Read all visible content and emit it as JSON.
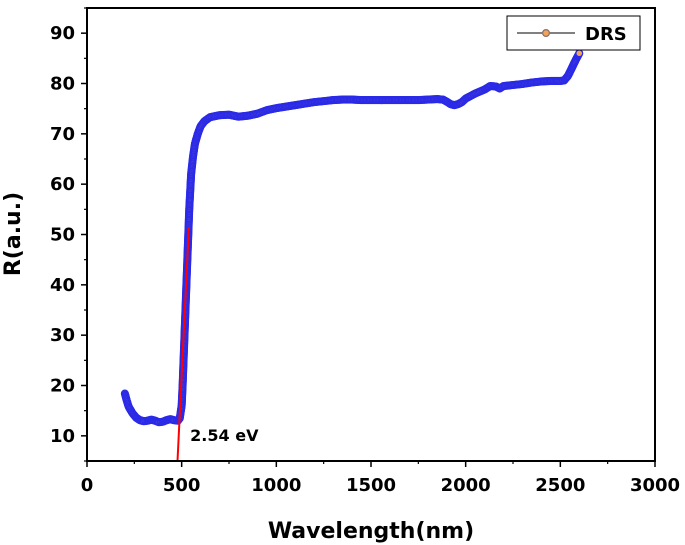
{
  "chart_data": {
    "type": "scatter",
    "xlabel": "Wavelength(nm)",
    "ylabel": "R(a.u.)",
    "xlim": [
      0,
      3000
    ],
    "ylim": [
      5,
      95
    ],
    "xticks": [
      0,
      500,
      1000,
      1500,
      2000,
      2500,
      3000
    ],
    "yticks": [
      10,
      20,
      30,
      40,
      50,
      60,
      70,
      80,
      90
    ],
    "grid": false,
    "legend": {
      "placement": "top-right",
      "entries": [
        "DRS"
      ]
    },
    "colors": {
      "points": "#2a2ae8",
      "marker_fill": "#f2a35a",
      "marker_edge": "#8a6f6a",
      "fit_line": "#ff0000"
    },
    "series": [
      {
        "name": "DRS",
        "points": [
          [
            200,
            18.4
          ],
          [
            210,
            17.0
          ],
          [
            220,
            15.8
          ],
          [
            240,
            14.5
          ],
          [
            260,
            13.6
          ],
          [
            280,
            13.1
          ],
          [
            300,
            12.9
          ],
          [
            320,
            13.0
          ],
          [
            340,
            13.2
          ],
          [
            360,
            13.0
          ],
          [
            380,
            12.7
          ],
          [
            400,
            12.8
          ],
          [
            420,
            13.1
          ],
          [
            440,
            13.3
          ],
          [
            460,
            13.1
          ],
          [
            480,
            13.0
          ],
          [
            490,
            13.5
          ],
          [
            500,
            16.0
          ],
          [
            505,
            20.0
          ],
          [
            510,
            25.0
          ],
          [
            515,
            30.0
          ],
          [
            520,
            35.0
          ],
          [
            525,
            40.0
          ],
          [
            530,
            45.0
          ],
          [
            535,
            50.0
          ],
          [
            540,
            55.0
          ],
          [
            545,
            58.5
          ],
          [
            550,
            62.0
          ],
          [
            560,
            65.5
          ],
          [
            570,
            68.0
          ],
          [
            585,
            70.0
          ],
          [
            600,
            71.5
          ],
          [
            620,
            72.5
          ],
          [
            650,
            73.3
          ],
          [
            700,
            73.7
          ],
          [
            750,
            73.8
          ],
          [
            800,
            73.4
          ],
          [
            850,
            73.6
          ],
          [
            900,
            74.0
          ],
          [
            950,
            74.7
          ],
          [
            1000,
            75.1
          ],
          [
            1050,
            75.4
          ],
          [
            1100,
            75.7
          ],
          [
            1150,
            76.0
          ],
          [
            1200,
            76.3
          ],
          [
            1250,
            76.5
          ],
          [
            1300,
            76.7
          ],
          [
            1350,
            76.8
          ],
          [
            1400,
            76.8
          ],
          [
            1450,
            76.7
          ],
          [
            1500,
            76.7
          ],
          [
            1550,
            76.7
          ],
          [
            1600,
            76.7
          ],
          [
            1650,
            76.7
          ],
          [
            1700,
            76.7
          ],
          [
            1750,
            76.7
          ],
          [
            1800,
            76.8
          ],
          [
            1850,
            76.9
          ],
          [
            1880,
            76.8
          ],
          [
            1900,
            76.4
          ],
          [
            1920,
            75.9
          ],
          [
            1940,
            75.7
          ],
          [
            1960,
            75.9
          ],
          [
            1980,
            76.3
          ],
          [
            2000,
            77.0
          ],
          [
            2050,
            78.0
          ],
          [
            2100,
            78.8
          ],
          [
            2130,
            79.5
          ],
          [
            2160,
            79.4
          ],
          [
            2180,
            79.0
          ],
          [
            2200,
            79.5
          ],
          [
            2250,
            79.7
          ],
          [
            2300,
            79.9
          ],
          [
            2350,
            80.2
          ],
          [
            2400,
            80.4
          ],
          [
            2450,
            80.5
          ],
          [
            2500,
            80.5
          ],
          [
            2520,
            80.6
          ],
          [
            2540,
            81.5
          ],
          [
            2560,
            83.0
          ],
          [
            2575,
            84.2
          ],
          [
            2590,
            85.3
          ],
          [
            2600,
            86.0
          ]
        ]
      }
    ],
    "fit_line": {
      "x": [
        478,
        538
      ],
      "y": [
        5,
        51.5
      ]
    },
    "annotations": [
      {
        "text": "2.54 eV",
        "x": 545,
        "y": 9
      }
    ]
  }
}
